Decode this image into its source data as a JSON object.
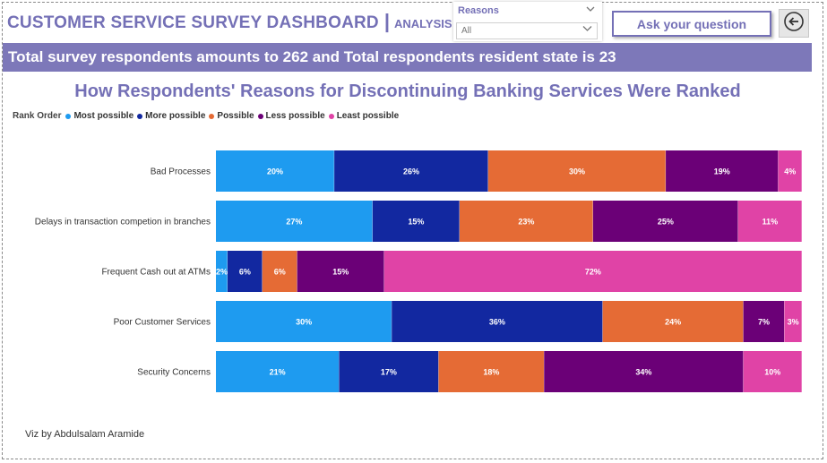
{
  "header": {
    "title": "CUSTOMER SERVICE SURVEY DASHBOARD",
    "separator": "|",
    "subtitle": "ANALYSIS"
  },
  "slicer": {
    "label": "Reasons",
    "value": "All"
  },
  "ask_button": {
    "label": "Ask your question"
  },
  "banner": {
    "text": "Total survey respondents amounts to 262 and Total respondents resident state is 23"
  },
  "footer": {
    "credit": "Viz by Abdulsalam Aramide"
  },
  "icons": {
    "back": "back-arrow-icon",
    "slicer": "chevron-down-icon"
  },
  "colors": {
    "accent": "#7470b6",
    "banner": "#7d78b9"
  },
  "chart_data": {
    "type": "bar",
    "orientation": "horizontal",
    "stacked": "100%",
    "title": "How Respondents' Reasons for Discontinuing Banking Services Were Ranked",
    "legend_title": "Rank Order",
    "legend_position": "top-left",
    "categories": [
      "Bad Processes",
      "Delays in transaction competion in branches",
      "Frequent Cash out at ATMs",
      "Poor Customer Services",
      "Security Concerns"
    ],
    "series": [
      {
        "name": "Most possible",
        "color": "#1e9bf0",
        "values": [
          20,
          27,
          2,
          30,
          21
        ],
        "labels": [
          "20%",
          "27%",
          "2%",
          "30%",
          "21%"
        ]
      },
      {
        "name": "More possible",
        "color": "#1228a0",
        "values": [
          26,
          15,
          6,
          36,
          17
        ],
        "labels": [
          "26%",
          "15%",
          "6%",
          "36%",
          "17%"
        ]
      },
      {
        "name": "Possible",
        "color": "#e56b35",
        "values": [
          30,
          23,
          6,
          24,
          18
        ],
        "labels": [
          "30%",
          "23%",
          "6%",
          "24%",
          "18%"
        ]
      },
      {
        "name": "Less possible",
        "color": "#6b0077",
        "values": [
          19,
          25,
          15,
          7,
          34
        ],
        "labels": [
          "19%",
          "25%",
          "15%",
          "7%",
          "34%"
        ]
      },
      {
        "name": "Least possible",
        "color": "#e043a6",
        "values": [
          4,
          11,
          72,
          3,
          10
        ],
        "labels": [
          "4%",
          "11%",
          "72%",
          "3%",
          "10%"
        ]
      }
    ],
    "grid": false
  }
}
